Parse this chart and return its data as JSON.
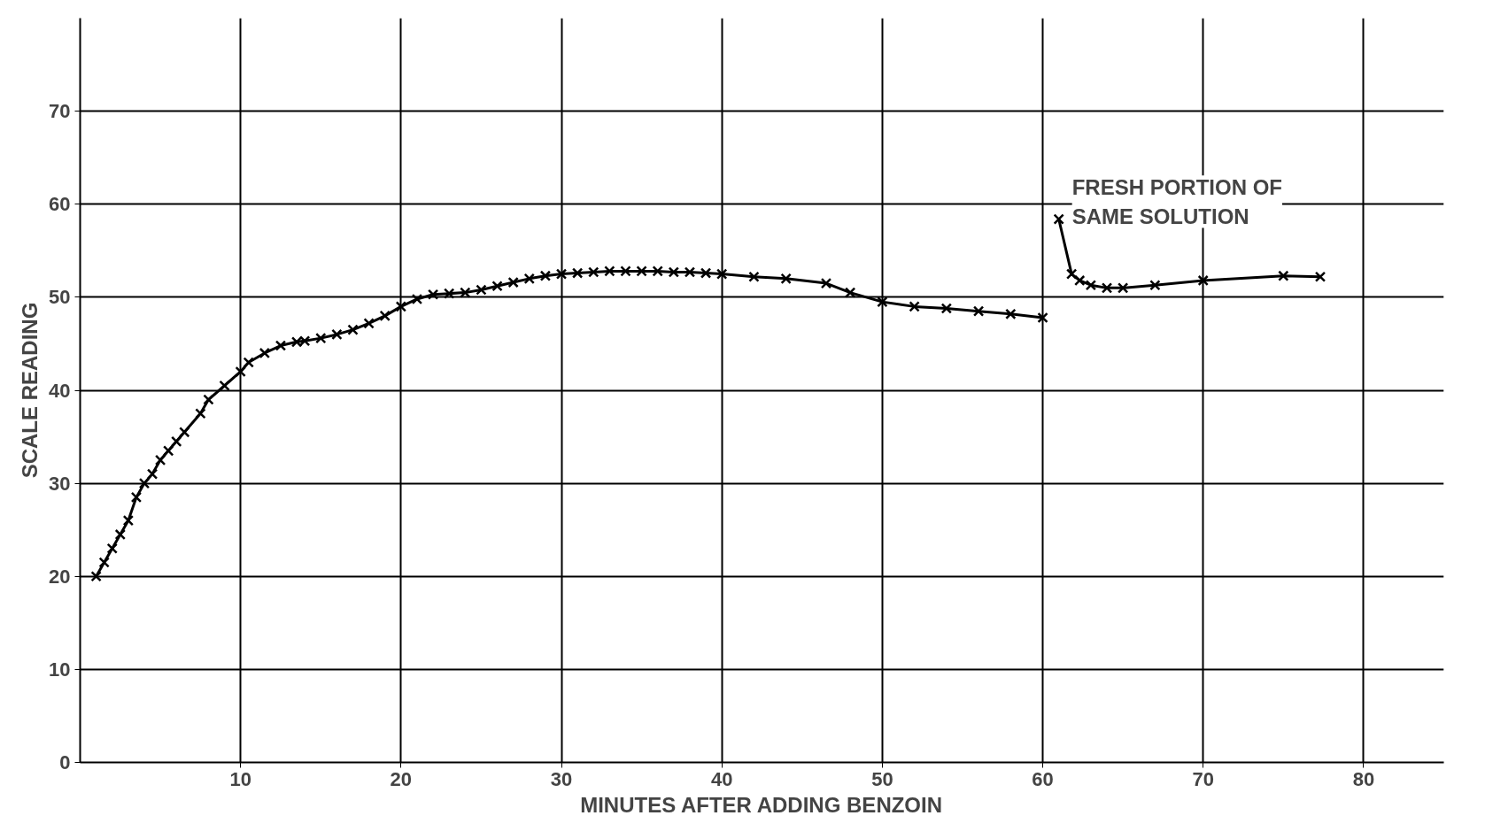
{
  "chart_data": {
    "type": "line",
    "xlabel": "MINUTES AFTER ADDING BENZOIN",
    "ylabel": "SCALE READING",
    "xlim": [
      0,
      85
    ],
    "ylim": [
      0,
      80
    ],
    "xticks": [
      10,
      20,
      30,
      40,
      50,
      60,
      70,
      80
    ],
    "yticks": [
      0,
      10,
      20,
      30,
      40,
      50,
      60,
      70
    ],
    "grid": true,
    "marker": "cross",
    "line_style": "solid",
    "series": [
      {
        "color": "#000000",
        "x": [
          1,
          1.5,
          2,
          2.5,
          3,
          3.5,
          4,
          4.5,
          5,
          5.5,
          6,
          6.5,
          7.5,
          8,
          9,
          10,
          10.5,
          11.5,
          12.5,
          13.5,
          14,
          15,
          16,
          17,
          18,
          19,
          20,
          21,
          22,
          23,
          24,
          25,
          26,
          27,
          28,
          29,
          30,
          31,
          32,
          33,
          34,
          35,
          36,
          37,
          38,
          39,
          40,
          42,
          44,
          46.5,
          48,
          50,
          52,
          54,
          56,
          58,
          60
        ],
        "values": [
          20,
          21.5,
          23,
          24.5,
          26,
          28.5,
          30,
          31,
          32.5,
          33.5,
          34.5,
          35.5,
          37.5,
          39,
          40.5,
          42,
          43,
          44,
          44.8,
          45.2,
          45.3,
          45.6,
          46,
          46.5,
          47.2,
          48,
          49,
          49.8,
          50.3,
          50.4,
          50.5,
          50.8,
          51.2,
          51.6,
          52,
          52.3,
          52.5,
          52.6,
          52.7,
          52.8,
          52.8,
          52.8,
          52.8,
          52.7,
          52.7,
          52.6,
          52.5,
          52.2,
          52,
          51.5,
          50.5,
          49.5,
          49,
          48.8,
          48.5,
          48.2,
          47.8
        ]
      },
      {
        "color": "#000000",
        "x": [
          61,
          61.8,
          62.3,
          63,
          64,
          65,
          67,
          70,
          75,
          77.3
        ],
        "values": [
          58.4,
          52.5,
          51.8,
          51.3,
          51,
          51,
          51.3,
          51.8,
          52.3,
          52.2
        ]
      }
    ],
    "annotations": [
      {
        "text": "FRESH PORTION OF\nSAME SOLUTION",
        "x": 61,
        "y": 58.4
      }
    ]
  }
}
